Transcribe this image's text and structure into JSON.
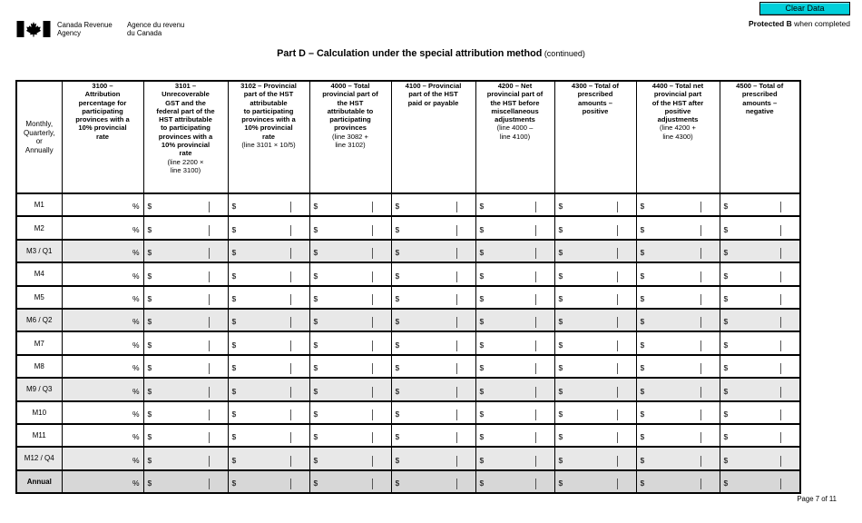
{
  "masthead": {
    "agency_en": "Canada Revenue\nAgency",
    "agency_fr": "Agence du revenu\ndu Canada",
    "clear_button": "Clear Data",
    "protected_label": "Protected B",
    "protected_suffix": " when completed"
  },
  "title": {
    "main": "Part D – Calculation under the special attribution method",
    "suffix": " (continued)"
  },
  "table": {
    "period_header": "Monthly,\nQuarterly,\nor\nAnnually",
    "percent_symbol": "%",
    "dollar_symbol": "$",
    "field_value": "",
    "columns": [
      {
        "id": "3100",
        "type": "percent",
        "title": "3100 –\nAttribution\npercentage for\nparticipating\nprovinces with a\n10% provincial\nrate",
        "note": ""
      },
      {
        "id": "3101",
        "type": "money",
        "title": "3101 –\nUnrecoverable\nGST and the\nfederal part of the\nHST attributable\nto participating\nprovinces with a\n10% provincial\nrate",
        "note": "(line 2200 ×\nline 3100)"
      },
      {
        "id": "3102",
        "type": "money",
        "title": "3102 – Provincial\npart of the HST\nattributable\nto participating\nprovinces with a\n10% provincial\nrate",
        "note": "(line 3101 × 10/5)"
      },
      {
        "id": "4000",
        "type": "money",
        "title": "4000 – Total\nprovincial part of\nthe HST\nattributable to\nparticipating\nprovinces",
        "note": "(line 3082 +\nline 3102)"
      },
      {
        "id": "4100",
        "type": "money",
        "title": "4100 – Provincial\npart of the HST\npaid or payable",
        "note": ""
      },
      {
        "id": "4200",
        "type": "money",
        "title": "4200 – Net\nprovincial part of\nthe HST before\nmiscellaneous\nadjustments",
        "note": "(line 4000 –\nline 4100)"
      },
      {
        "id": "4300",
        "type": "money",
        "title": "4300 – Total of\nprescribed\namounts –\npositive",
        "note": ""
      },
      {
        "id": "4400",
        "type": "money",
        "title": "4400 – Total net\nprovincial part\nof the HST after\npositive\nadjustments",
        "note": "(line 4200 +\nline 4300)"
      },
      {
        "id": "4500",
        "type": "money",
        "title": "4500 – Total of\nprescribed\namounts –\nnegative",
        "note": ""
      }
    ],
    "rows": [
      {
        "label": "M1",
        "shaded": false,
        "total": false
      },
      {
        "label": "M2",
        "shaded": false,
        "total": false
      },
      {
        "label": "M3 / Q1",
        "shaded": true,
        "total": false
      },
      {
        "label": "M4",
        "shaded": false,
        "total": false
      },
      {
        "label": "M5",
        "shaded": false,
        "total": false
      },
      {
        "label": "M6 / Q2",
        "shaded": true,
        "total": false
      },
      {
        "label": "M7",
        "shaded": false,
        "total": false
      },
      {
        "label": "M8",
        "shaded": false,
        "total": false
      },
      {
        "label": "M9 / Q3",
        "shaded": true,
        "total": false
      },
      {
        "label": "M10",
        "shaded": false,
        "total": false
      },
      {
        "label": "M11",
        "shaded": false,
        "total": false
      },
      {
        "label": "M12 / Q4",
        "shaded": true,
        "total": false
      },
      {
        "label": "Annual",
        "shaded": true,
        "total": true
      }
    ]
  },
  "footer": {
    "page_indicator": "Page 7 of 11"
  },
  "colors": {
    "clear_button_bg": "#00CFDA",
    "quarter_row_bg": "#e8e8e8",
    "annual_row_bg": "#d7d7d7",
    "border": "#000000"
  }
}
